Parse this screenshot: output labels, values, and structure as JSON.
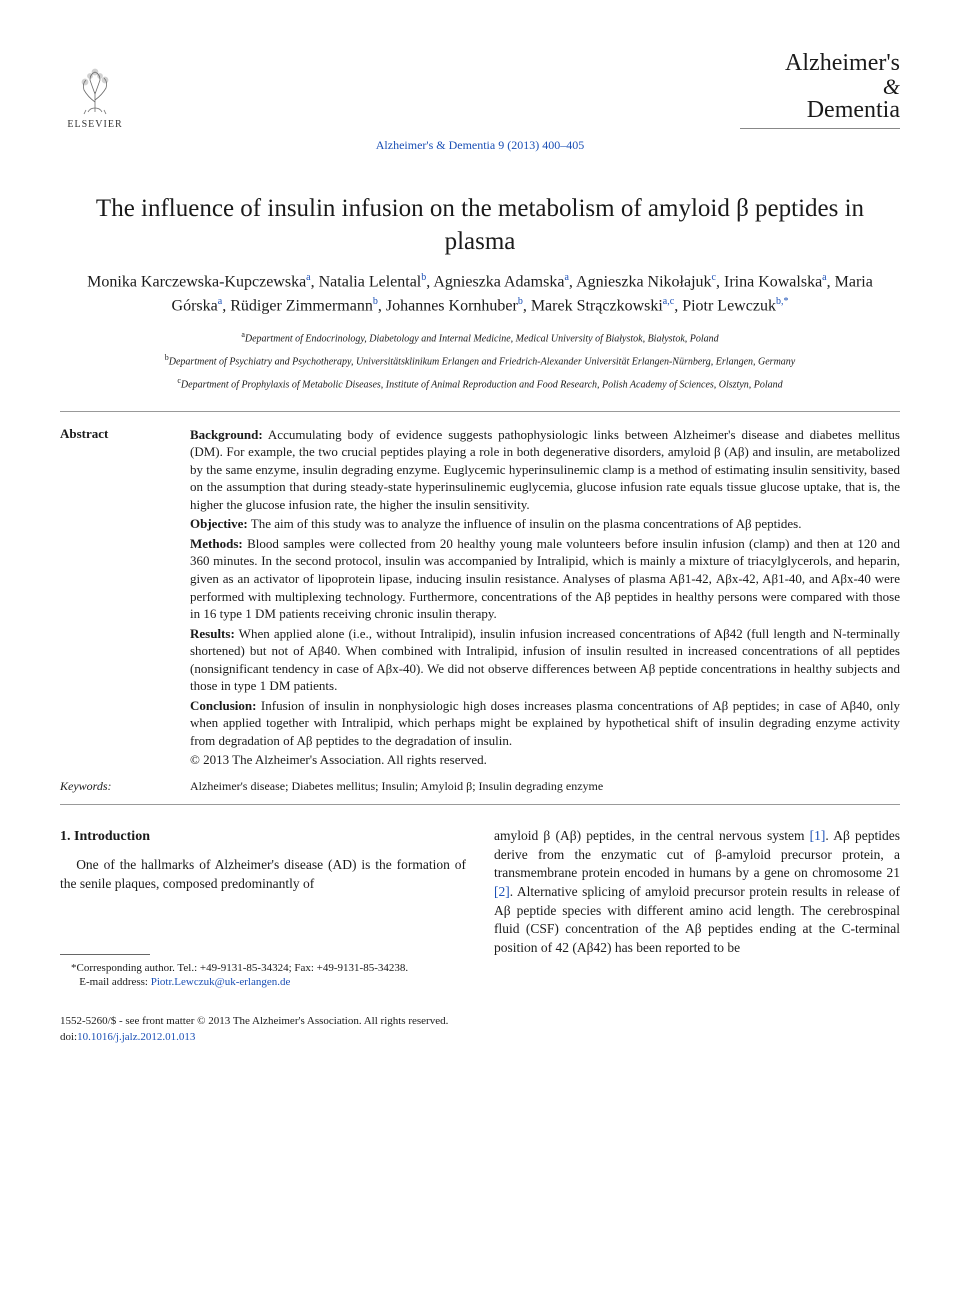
{
  "publisher": {
    "name": "ELSEVIER"
  },
  "journal_logo": {
    "line1": "Alzheimer's",
    "amp": "&",
    "line2": "Dementia"
  },
  "citation": "Alzheimer's & Dementia 9 (2013) 400–405",
  "title": "The influence of insulin infusion on the metabolism of amyloid β peptides in plasma",
  "authors_html": "Monika Karczewska-Kupczewska<sup>a</sup>, Natalia Lelental<sup>b</sup>, Agnieszka Adamska<sup>a</sup>, Agnieszka Nikołajuk<sup>c</sup>, Irina Kowalska<sup>a</sup>, Maria Górska<sup>a</sup>, Rüdiger Zimmermann<sup>b</sup>, Johannes Kornhuber<sup>b</sup>, Marek Strączkowski<sup>a,c</sup>, Piotr Lewczuk<sup>b,*</sup>",
  "affiliations": [
    {
      "sup": "a",
      "text": "Department of Endocrinology, Diabetology and Internal Medicine, Medical University of Białystok, Białystok, Poland"
    },
    {
      "sup": "b",
      "text": "Department of Psychiatry and Psychotherapy, Universitätsklinikum Erlangen and Friedrich-Alexander Universität Erlangen-Nürnberg, Erlangen, Germany"
    },
    {
      "sup": "c",
      "text": "Department of Prophylaxis of Metabolic Diseases, Institute of Animal Reproduction and Food Research, Polish Academy of Sciences, Olsztyn, Poland"
    }
  ],
  "abstract": {
    "label": "Abstract",
    "sections": [
      {
        "head": "Background:",
        "body": "Accumulating body of evidence suggests pathophysiologic links between Alzheimer's disease and diabetes mellitus (DM). For example, the two crucial peptides playing a role in both degenerative disorders, amyloid β (Aβ) and insulin, are metabolized by the same enzyme, insulin degrading enzyme. Euglycemic hyperinsulinemic clamp is a method of estimating insulin sensitivity, based on the assumption that during steady-state hyperinsulinemic euglycemia, glucose infusion rate equals tissue glucose uptake, that is, the higher the glucose infusion rate, the higher the insulin sensitivity."
      },
      {
        "head": "Objective:",
        "body": "The aim of this study was to analyze the influence of insulin on the plasma concentrations of Aβ peptides."
      },
      {
        "head": "Methods:",
        "body": "Blood samples were collected from 20 healthy young male volunteers before insulin infusion (clamp) and then at 120 and 360 minutes. In the second protocol, insulin was accompanied by Intralipid, which is mainly a mixture of triacylglycerols, and heparin, given as an activator of lipoprotein lipase, inducing insulin resistance. Analyses of plasma Aβ1-42, Aβx-42, Aβ1-40, and Aβx-40 were performed with multiplexing technology. Furthermore, concentrations of the Aβ peptides in healthy persons were compared with those in 16 type 1 DM patients receiving chronic insulin therapy."
      },
      {
        "head": "Results:",
        "body": "When applied alone (i.e., without Intralipid), insulin infusion increased concentrations of Aβ42 (full length and N-terminally shortened) but not of Aβ40. When combined with Intralipid, infusion of insulin resulted in increased concentrations of all peptides (nonsignificant tendency in case of Aβx-40). We did not observe differences between Aβ peptide concentrations in healthy subjects and those in type 1 DM patients."
      },
      {
        "head": "Conclusion:",
        "body": "Infusion of insulin in nonphysiologic high doses increases plasma concentrations of Aβ peptides; in case of Aβ40, only when applied together with Intralipid, which perhaps might be explained by hypothetical shift of insulin degrading enzyme activity from degradation of Aβ peptides to the degradation of insulin."
      }
    ],
    "copyright": "© 2013 The Alzheimer's Association. All rights reserved."
  },
  "keywords": {
    "label": "Keywords:",
    "body": "Alzheimer's disease; Diabetes mellitus; Insulin; Amyloid β; Insulin degrading enzyme"
  },
  "section1": {
    "heading": "1. Introduction",
    "para_left": "One of the hallmarks of Alzheimer's disease (AD) is the formation of the senile plaques, composed predominantly of",
    "para_right": "amyloid β (Aβ) peptides, in the central nervous system [1]. Aβ peptides derive from the enzymatic cut of β-amyloid precursor protein, a transmembrane protein encoded in humans by a gene on chromosome 21 [2]. Alternative splicing of amyloid precursor protein results in release of Aβ peptide species with different amino acid length. The cerebrospinal fluid (CSF) concentration of the Aβ peptides ending at the C-terminal position of 42 (Aβ42) has been reported to be"
  },
  "corresponding": {
    "line1": "*Corresponding author. Tel.: +49-9131-85-34324; Fax: +49-9131-85-34238.",
    "line2": "E-mail address: Piotr.Lewczuk@uk-erlangen.de"
  },
  "footer": {
    "issn": "1552-5260/$ - see front matter © 2013 The Alzheimer's Association. All rights reserved.",
    "doi_label": "doi:",
    "doi": "10.1016/j.jalz.2012.01.013"
  },
  "colors": {
    "link": "#1a4fb5",
    "text": "#1a1a1a",
    "rule": "#999999",
    "background": "#ffffff"
  }
}
